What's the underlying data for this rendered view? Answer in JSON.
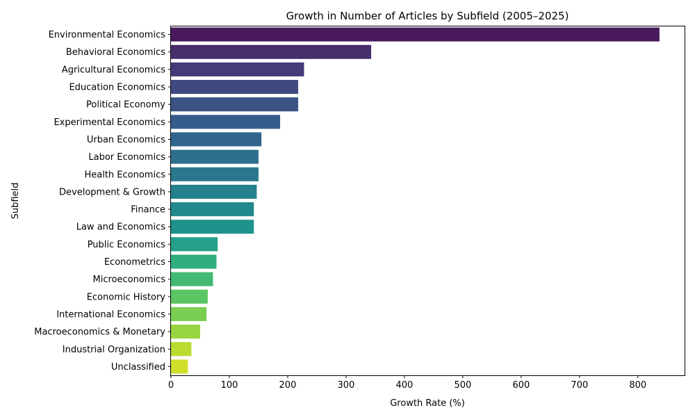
{
  "chart_data": {
    "type": "bar",
    "orientation": "horizontal",
    "title": "Growth in Number of Articles by Subfield (2005–2025)",
    "xlabel": "Growth Rate (%)",
    "ylabel": "Subfield",
    "xlim": [
      0,
      880
    ],
    "xticks": [
      0,
      100,
      200,
      300,
      400,
      500,
      600,
      700,
      800
    ],
    "grid": false,
    "categories": [
      "Environmental Economics",
      "Behavioral Economics",
      "Agricultural Economics",
      "Education Economics",
      "Political Economy",
      "Experimental Economics",
      "Urban Economics",
      "Labor Economics",
      "Health Economics",
      "Development & Growth",
      "Finance",
      "Law and Economics",
      "Public Economics",
      "Econometrics",
      "Microeconomics",
      "Economic History",
      "International Economics",
      "Macroeconomics & Monetary",
      "Industrial Organization",
      "Unclassified"
    ],
    "values": [
      837,
      343,
      228,
      218,
      218,
      187,
      155,
      150,
      150,
      147,
      142,
      142,
      80,
      78,
      72,
      63,
      61,
      50,
      35,
      29
    ],
    "colors": [
      "#481a5b",
      "#472d6b",
      "#443b77",
      "#404a80",
      "#3b5485",
      "#365c8d",
      "#31658e",
      "#2d6f8e",
      "#29788e",
      "#25818e",
      "#21898d",
      "#1f928c",
      "#24a188",
      "#2fae7e",
      "#43b974",
      "#5cc563",
      "#7acf53",
      "#99d543",
      "#badc30",
      "#d0de2a"
    ]
  }
}
